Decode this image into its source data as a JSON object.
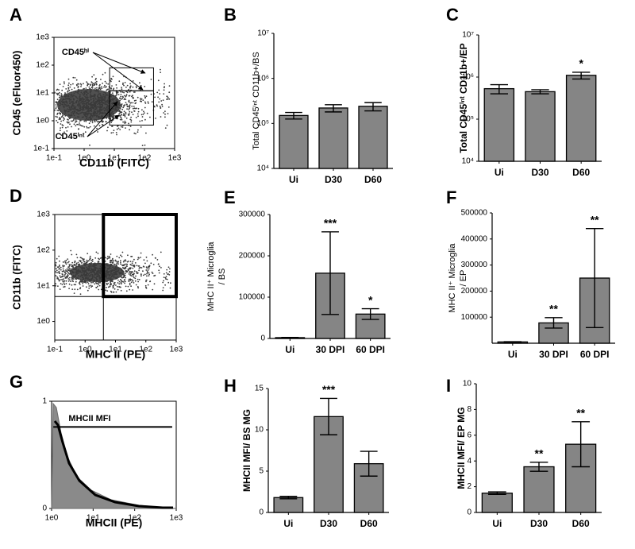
{
  "chart_data": [
    {
      "panel": "A",
      "type": "density",
      "xlabel": "CD11b (FITC)",
      "ylabel": "CD45 (eFluor450)",
      "log_x": true,
      "log_y": true,
      "xlim": [
        0.1,
        1000
      ],
      "ylim": [
        0.1,
        1000
      ],
      "xticks": [
        {
          "value": 0.1,
          "label": "1e-1"
        },
        {
          "value": 1,
          "label": "1e0"
        },
        {
          "value": 10,
          "label": "1e1"
        },
        {
          "value": 100,
          "label": "1e2"
        },
        {
          "value": 1000,
          "label": "1e3"
        }
      ],
      "yticks": [
        {
          "value": 0.1,
          "label": "1e-1"
        },
        {
          "value": 1,
          "label": "1e0"
        },
        {
          "value": 10,
          "label": "1e1"
        },
        {
          "value": 100,
          "label": "1e2"
        },
        {
          "value": 1000,
          "label": "1e3"
        }
      ],
      "gates": [
        {
          "x": [
            7,
            200
          ],
          "y": [
            12,
            80
          ]
        },
        {
          "x": [
            7,
            200
          ],
          "y": [
            0.7,
            12
          ]
        }
      ],
      "annotations": [
        "CD45ʰⁱ",
        "CD45ⁱⁿᵗ"
      ]
    },
    {
      "panel": "B",
      "type": "bar",
      "ylabel": "Total CD45ⁱⁿᵗ CD11b+/BS",
      "log_y": true,
      "color": "#858585",
      "categories": [
        "Ui",
        "D30",
        "D60"
      ],
      "values": [
        150000,
        220000,
        240000
      ],
      "errors": [
        25000,
        40000,
        50000
      ],
      "ylim": [
        10000,
        10000000
      ],
      "yticks": [
        {
          "value": 10000,
          "label": "10⁴"
        },
        {
          "value": 100000,
          "label": "10⁵"
        },
        {
          "value": 1000000,
          "label": "10⁶"
        },
        {
          "value": 10000000,
          "label": "10⁷"
        }
      ],
      "significance": [
        null,
        null,
        null
      ]
    },
    {
      "panel": "C",
      "type": "bar",
      "ylabel": "Total CD45ⁱⁿᵗ CD11b+/EP",
      "log_y": true,
      "color": "#858585",
      "categories": [
        "Ui",
        "D30",
        "D60"
      ],
      "values": [
        530000,
        450000,
        1100000
      ],
      "errors": [
        130000,
        50000,
        200000
      ],
      "ylim": [
        10000,
        10000000
      ],
      "yticks": [
        {
          "value": 10000,
          "label": "10⁴"
        },
        {
          "value": 100000,
          "label": "10⁵"
        },
        {
          "value": 1000000,
          "label": "10⁶"
        },
        {
          "value": 10000000,
          "label": "10⁷"
        }
      ],
      "significance": [
        null,
        null,
        "*"
      ]
    },
    {
      "panel": "D",
      "type": "density",
      "xlabel": "MHC II (PE)",
      "ylabel": "CD11b (FITC)",
      "log_x": true,
      "log_y": true,
      "xlim": [
        0.1,
        1000
      ],
      "ylim": [
        0.3,
        1000
      ],
      "xticks": [
        {
          "value": 0.1,
          "label": "1e-1"
        },
        {
          "value": 1,
          "label": "1e0"
        },
        {
          "value": 10,
          "label": "1e1"
        },
        {
          "value": 100,
          "label": "1e2"
        },
        {
          "value": 1000,
          "label": "1e3"
        }
      ],
      "yticks": [
        {
          "value": 1,
          "label": "1e0"
        },
        {
          "value": 10,
          "label": "1e1"
        },
        {
          "value": 100,
          "label": "1e2"
        },
        {
          "value": 1000,
          "label": "1e3"
        }
      ],
      "quadrant": [
        4,
        5
      ],
      "gates": [
        {
          "x": [
            4,
            1000
          ],
          "y": [
            5,
            1000
          ]
        }
      ]
    },
    {
      "panel": "E",
      "type": "bar",
      "ylabel": [
        "MHC II⁺ Microglia",
        "/ BS"
      ],
      "color": "#858585",
      "categories": [
        "Ui",
        "30 DPI",
        "60 DPI"
      ],
      "values": [
        2000,
        158000,
        59000
      ],
      "errors": [
        500,
        100000,
        13000
      ],
      "ylim": [
        0,
        300000
      ],
      "yticks": [
        0,
        100000,
        200000,
        300000
      ],
      "significance": [
        null,
        "***",
        "*"
      ]
    },
    {
      "panel": "F",
      "type": "bar",
      "ylabel": [
        "MHC II⁺ Microglia",
        "/ EP"
      ],
      "color": "#858585",
      "categories": [
        "Ui",
        "30 DPI",
        "60 DPI"
      ],
      "values": [
        5000,
        78000,
        250000
      ],
      "errors": [
        1000,
        20000,
        190000
      ],
      "ylim": [
        0,
        500000
      ],
      "yticks": [
        100000,
        200000,
        300000,
        400000,
        500000
      ],
      "significance": [
        null,
        "**",
        "**"
      ]
    },
    {
      "panel": "G",
      "type": "profile",
      "xlabel": "MHCII  (PE)",
      "log_x": true,
      "xlim": [
        1,
        1000
      ],
      "ylim": [
        0,
        1
      ],
      "xticks": [
        {
          "value": 1,
          "label": "1e0"
        },
        {
          "value": 10,
          "label": "1e1"
        },
        {
          "value": 100,
          "label": "1e2"
        },
        {
          "value": 1000,
          "label": "1e3"
        }
      ],
      "yticks": [
        0,
        1
      ],
      "range_gate": {
        "x": [
          1.1,
          800
        ],
        "y": 0.76
      },
      "annotations": [
        "MHCII  MFI"
      ]
    },
    {
      "panel": "H",
      "type": "bar",
      "ylabel": "MHCII MFI/ BS MG",
      "color": "#858585",
      "categories": [
        "Ui",
        "D30",
        "D60"
      ],
      "values": [
        1.8,
        11.6,
        5.9
      ],
      "errors": [
        0.15,
        2.2,
        1.5
      ],
      "ylim": [
        0,
        15
      ],
      "yticks": [
        0,
        5,
        10,
        15
      ],
      "significance": [
        null,
        "***",
        null
      ]
    },
    {
      "panel": "I",
      "type": "bar",
      "ylabel": "MHCII MFI/ EP MG",
      "color": "#858585",
      "categories": [
        "Ui",
        "D30",
        "D60"
      ],
      "values": [
        1.5,
        3.55,
        5.3
      ],
      "errors": [
        0.1,
        0.35,
        1.75
      ],
      "ylim": [
        0,
        10
      ],
      "yticks": [
        0,
        2,
        4,
        6,
        8,
        10
      ],
      "significance": [
        null,
        "**",
        "**"
      ]
    }
  ]
}
